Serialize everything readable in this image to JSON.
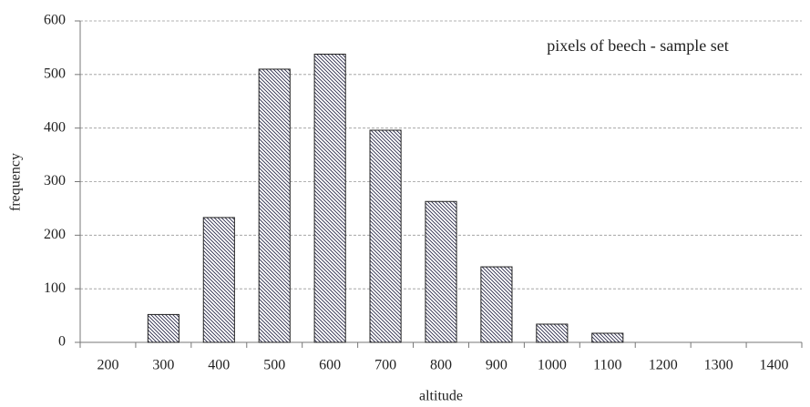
{
  "chart_data": {
    "type": "bar",
    "annotation": "pixels of beech - sample set",
    "x_label": "altitude",
    "y_label": "frequency",
    "categories": [
      "200",
      "300",
      "400",
      "500",
      "600",
      "700",
      "800",
      "900",
      "1000",
      "1100",
      "1200",
      "1300",
      "1400"
    ],
    "values": [
      0,
      52,
      233,
      510,
      538,
      396,
      263,
      141,
      34,
      17,
      0,
      0,
      0
    ],
    "color": "#2a2a4a",
    "ylim": [
      0,
      600
    ],
    "yticks": [
      0,
      100,
      200,
      300,
      400,
      500,
      600
    ],
    "grid": true
  }
}
